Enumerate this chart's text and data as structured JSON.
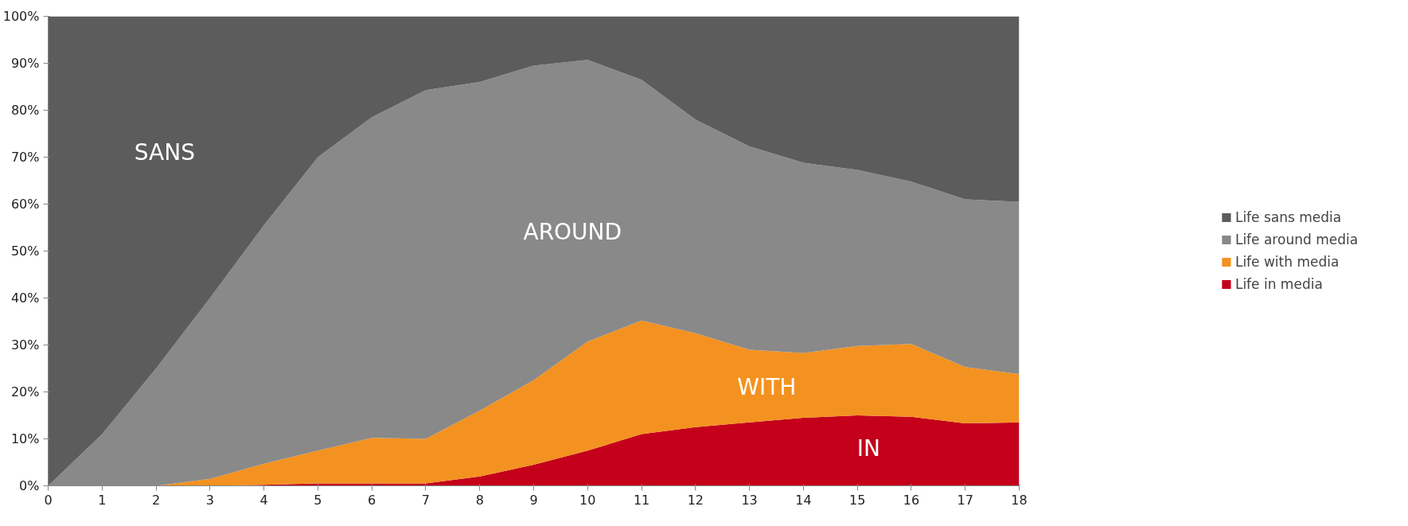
{
  "chart_data": {
    "type": "area",
    "stacked": true,
    "legend": "right",
    "grid": false,
    "x": [
      0,
      1,
      2,
      3,
      4,
      5,
      6,
      7,
      8,
      9,
      10,
      11,
      12,
      13,
      14,
      15,
      16,
      17,
      18
    ],
    "series": [
      {
        "name": "Life in media",
        "color": "#c4001a",
        "values": [
          0,
          0,
          0,
          0,
          0.2,
          0.5,
          0.5,
          0.5,
          2,
          4.5,
          7.5,
          11,
          12.5,
          13.5,
          14.5,
          15,
          14.7,
          13.3,
          13.5
        ]
      },
      {
        "name": "Life with media",
        "color": "#f39220",
        "values": [
          0,
          0,
          0,
          1.5,
          4.5,
          7,
          9.7,
          9.5,
          14,
          18,
          23.2,
          24.2,
          20,
          15.5,
          13.8,
          14.8,
          15.5,
          12,
          10.3
        ]
      },
      {
        "name": "Life around media",
        "color": "#898989",
        "values": [
          0,
          11,
          25,
          38.5,
          50.8,
          62.5,
          68.3,
          74.3,
          70,
          67,
          60,
          51.3,
          45.5,
          43.3,
          40.5,
          37.5,
          34.6,
          35.7,
          36.7
        ]
      },
      {
        "name": "Life sans media",
        "color": "#5c5c5c",
        "values": [
          100,
          89,
          75,
          60,
          44.5,
          30,
          21.5,
          15.7,
          14,
          10.5,
          9.3,
          13.5,
          22,
          27.7,
          31.2,
          32.7,
          35.2,
          39,
          39.5
        ]
      }
    ],
    "xlim": [
      0,
      18
    ],
    "xticks": [
      0,
      1,
      2,
      3,
      4,
      5,
      6,
      7,
      8,
      9,
      10,
      11,
      12,
      13,
      14,
      15,
      16,
      17,
      18
    ],
    "ylim": [
      0,
      100
    ],
    "yticks": [
      {
        "value": 0,
        "label": "0%"
      },
      {
        "value": 10,
        "label": "10%"
      },
      {
        "value": 20,
        "label": "20%"
      },
      {
        "value": 30,
        "label": "30%"
      },
      {
        "value": 40,
        "label": "40%"
      },
      {
        "value": 50,
        "label": "50%"
      },
      {
        "value": 60,
        "label": "60%"
      },
      {
        "value": 70,
        "label": "70%"
      },
      {
        "value": 80,
        "label": "80%"
      },
      {
        "value": 90,
        "label": "90%"
      },
      {
        "value": 100,
        "label": "100%"
      }
    ],
    "annotations": [
      "SANS",
      "AROUND",
      "WITH",
      "IN"
    ]
  }
}
